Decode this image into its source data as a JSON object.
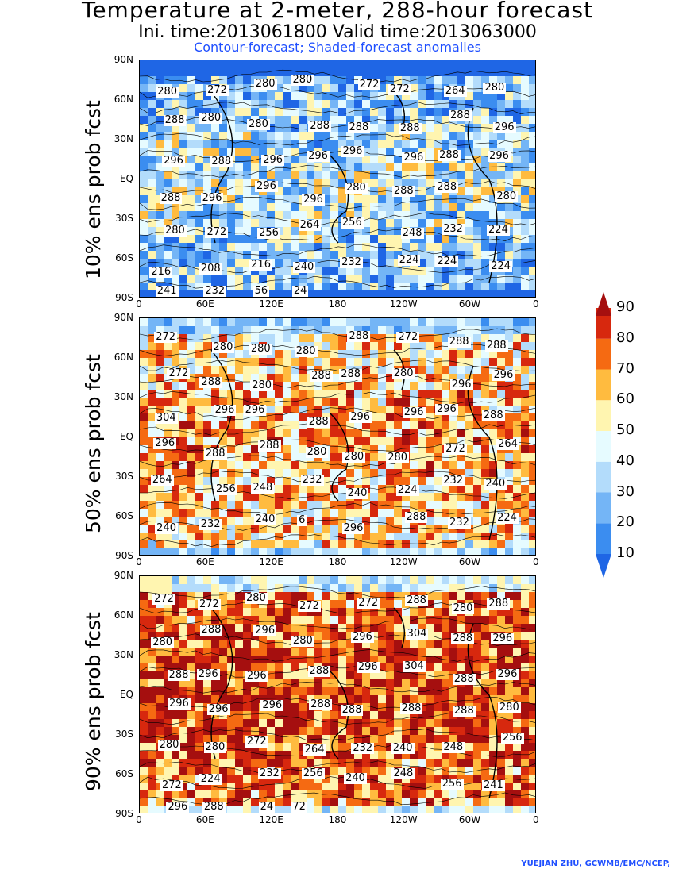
{
  "title": {
    "line1": "Temperature at 2-meter, 288-hour forecast",
    "line2": "Ini. time:2013061800    Valid time:2013063000",
    "line3": "Contour-forecast; Shaded-forecast anomalies"
  },
  "credit": "YUEJIAN ZHU, GCWMB/EMC/NCEP,",
  "axes": {
    "y_ticks": [
      "90N",
      "60N",
      "30N",
      "EQ",
      "30S",
      "60S",
      "90S"
    ],
    "x_ticks": [
      "0",
      "60E",
      "120E",
      "180",
      "120W",
      "60W",
      "0"
    ]
  },
  "colorbar": {
    "levels": [
      "10",
      "20",
      "30",
      "40",
      "50",
      "60",
      "70",
      "80",
      "90"
    ],
    "colors": [
      "#1f66e5",
      "#3b8df0",
      "#74b5f6",
      "#b3dcfb",
      "#e6fbff",
      "#fff5b0",
      "#ffbb3f",
      "#f56a12",
      "#d7280e",
      "#a50f0f"
    ]
  },
  "panels": [
    {
      "label": "10% ens prob fcst",
      "labels": [
        "280",
        "272",
        "280",
        "280",
        "272",
        "272",
        "264",
        "280",
        "288",
        "280",
        "280",
        "288",
        "288",
        "288",
        "288",
        "296",
        "296",
        "288",
        "296",
        "296",
        "296",
        "296",
        "288",
        "296",
        "288",
        "296",
        "296",
        "296",
        "280",
        "288",
        "288",
        "280",
        "280",
        "272",
        "256",
        "264",
        "256",
        "248",
        "232",
        "224",
        "216",
        "208",
        "216",
        "240",
        "232",
        "224",
        "224",
        "224",
        "241",
        "232",
        "56",
        "24"
      ]
    },
    {
      "label": "50% ens prob fcst",
      "labels": [
        "272",
        "280",
        "280",
        "280",
        "288",
        "272",
        "288",
        "288",
        "272",
        "288",
        "280",
        "288",
        "288",
        "280",
        "296",
        "296",
        "304",
        "296",
        "296",
        "288",
        "296",
        "296",
        "296",
        "288",
        "296",
        "288",
        "288",
        "280",
        "280",
        "280",
        "272",
        "264",
        "264",
        "256",
        "248",
        "232",
        "240",
        "224",
        "232",
        "240",
        "240",
        "232",
        "240",
        "6",
        "296",
        "288",
        "232",
        "224"
      ]
    },
    {
      "label": "90% ens prob fcst",
      "labels": [
        "272",
        "272",
        "280",
        "272",
        "272",
        "288",
        "280",
        "288",
        "280",
        "288",
        "296",
        "280",
        "296",
        "304",
        "288",
        "296",
        "288",
        "296",
        "296",
        "288",
        "296",
        "304",
        "288",
        "296",
        "296",
        "296",
        "296",
        "288",
        "288",
        "288",
        "288",
        "280",
        "280",
        "280",
        "272",
        "264",
        "232",
        "240",
        "248",
        "256",
        "272",
        "224",
        "232",
        "256",
        "240",
        "248",
        "256",
        "241",
        "296",
        "288",
        "24",
        "72"
      ]
    }
  ]
}
